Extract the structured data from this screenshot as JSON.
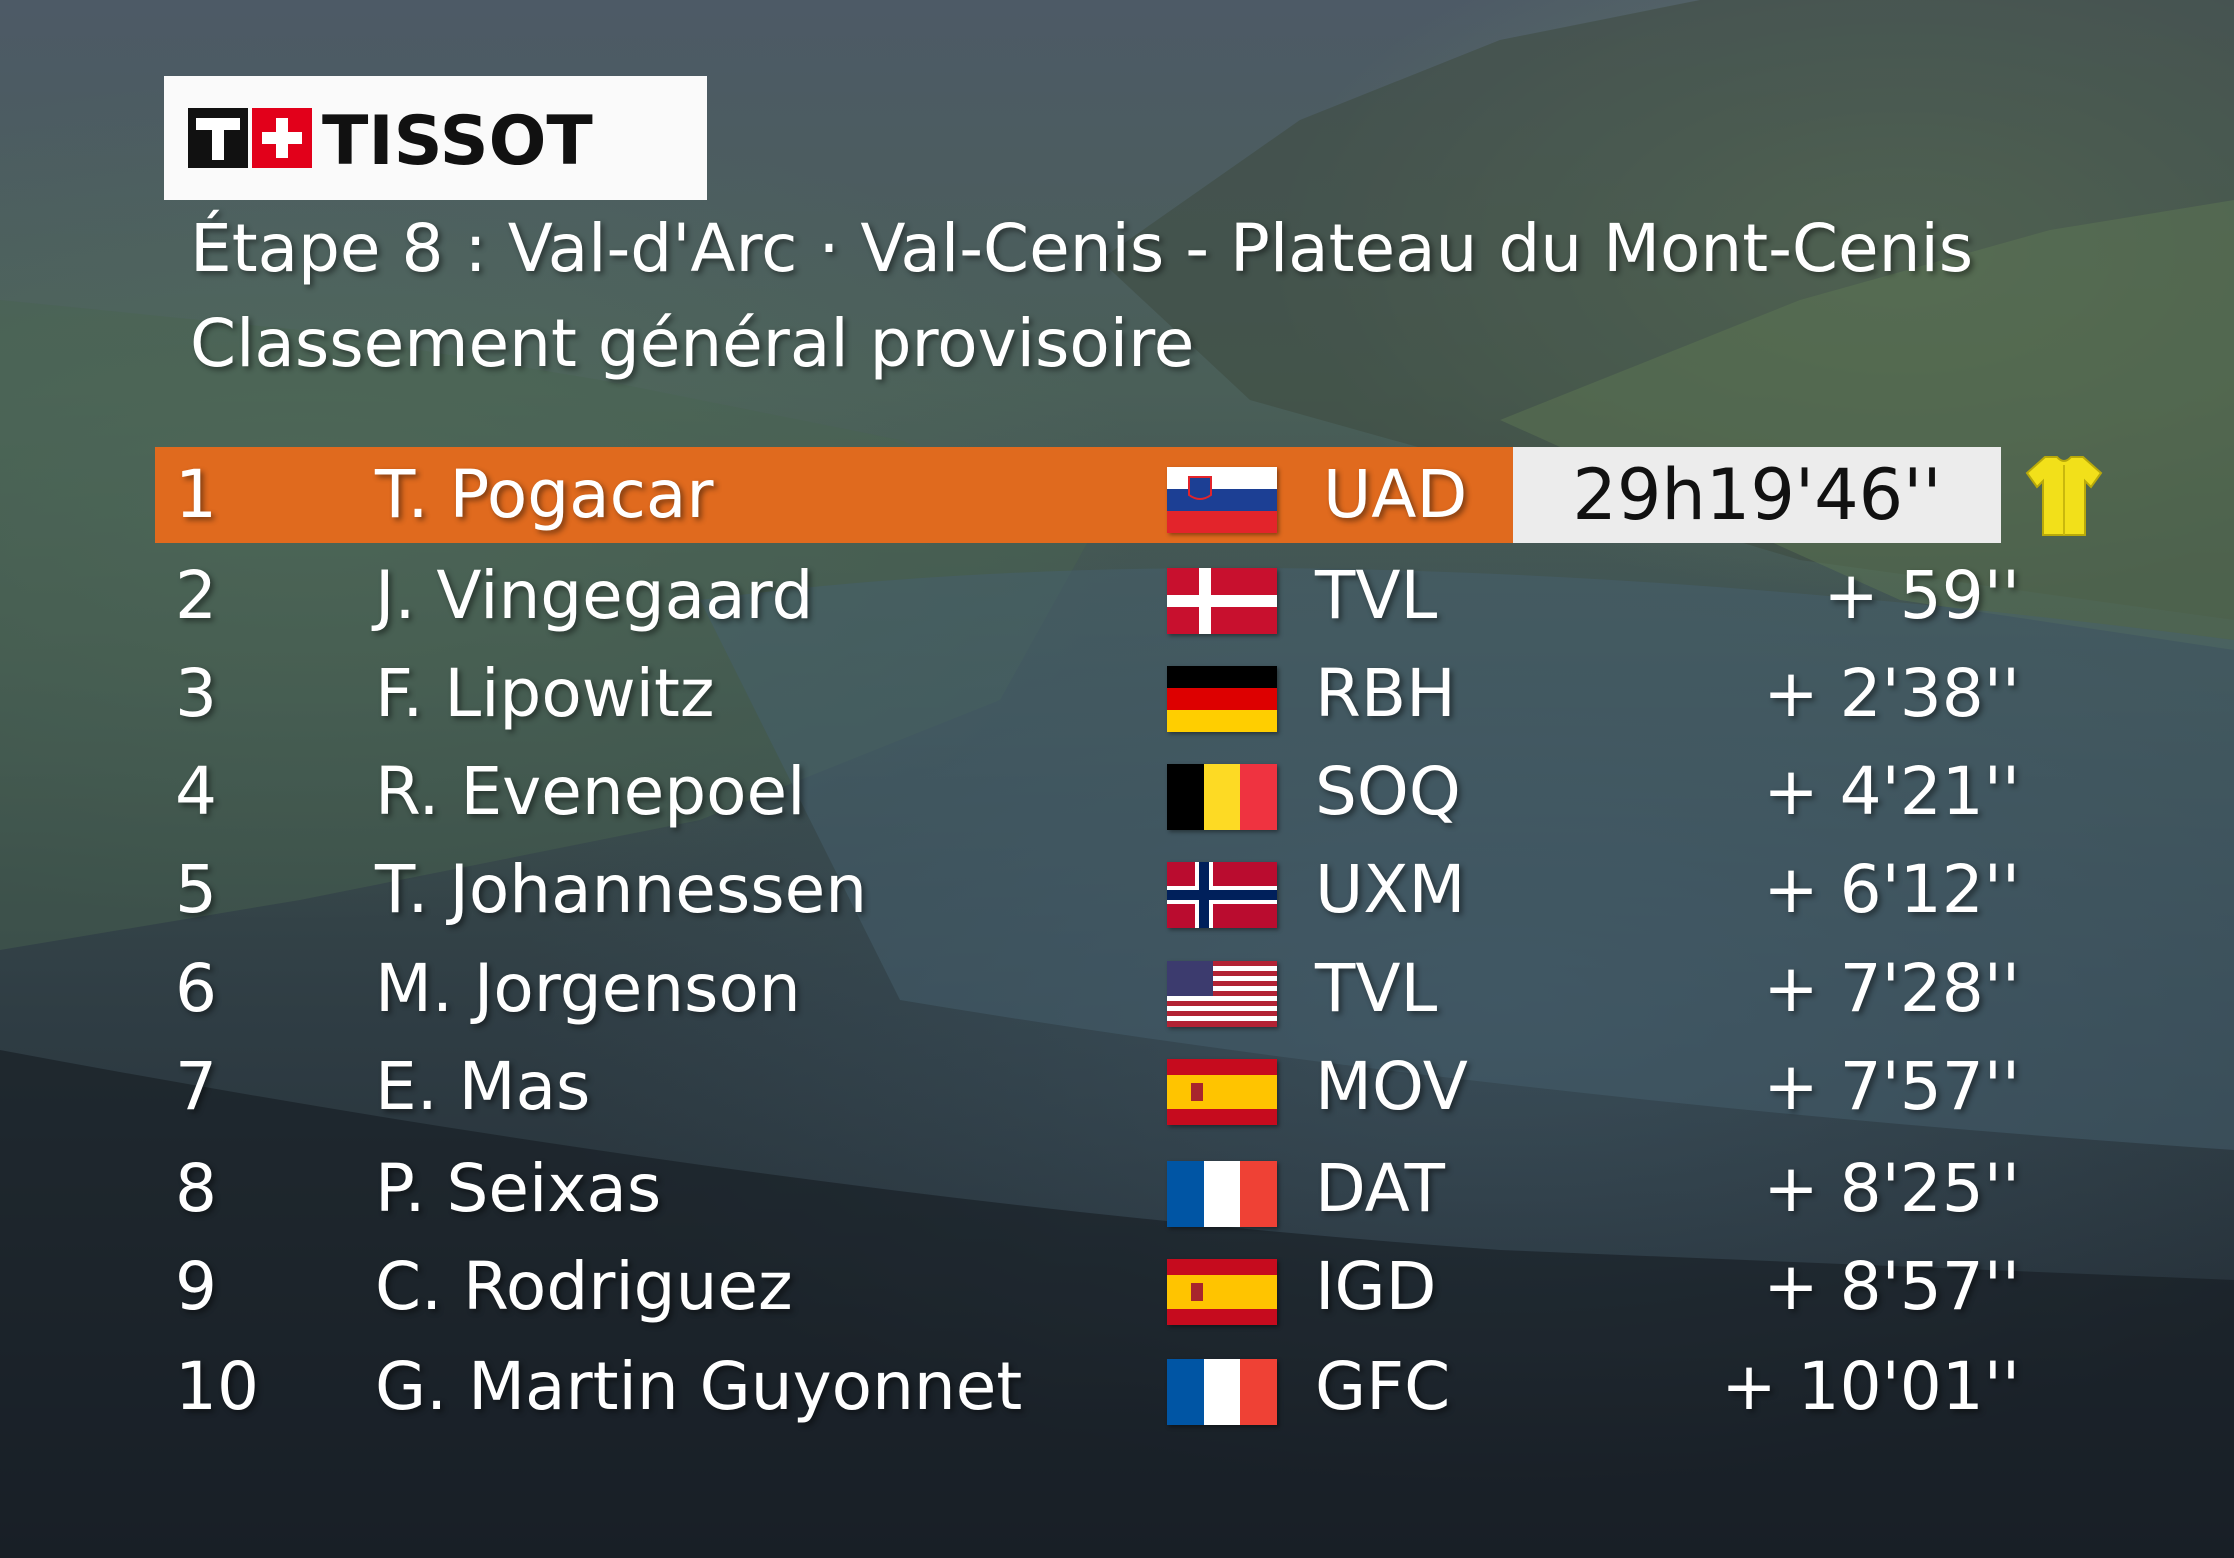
{
  "brand": {
    "logo_text": "TISSOT",
    "accent": "#e2001a"
  },
  "header": {
    "title": "Étape 8 : Val-d'Arc · Val-Cenis - Plateau du Mont-Cenis",
    "subtitle": "Classement général provisoire"
  },
  "colors": {
    "leader_row": "#e06a1e",
    "time_box": "#ececec",
    "yellow_jersey": "#f2e01a"
  },
  "standings": [
    {
      "rank": "1",
      "rider": "T. Pogacar",
      "team": "UAD",
      "time": "29h19'46''",
      "flag": "slovenia-flag-icon",
      "jersey": "yellow-jersey-icon"
    },
    {
      "rank": "2",
      "rider": "J. Vingegaard",
      "team": "TVL",
      "time": "+  59''",
      "flag": "denmark-flag-icon"
    },
    {
      "rank": "3",
      "rider": "F. Lipowitz",
      "team": "RBH",
      "time": "+  2'38''",
      "flag": "germany-flag-icon"
    },
    {
      "rank": "4",
      "rider": "R. Evenepoel",
      "team": "SOQ",
      "time": "+  4'21''",
      "flag": "belgium-flag-icon"
    },
    {
      "rank": "5",
      "rider": "T. Johannessen",
      "team": "UXM",
      "time": "+  6'12''",
      "flag": "norway-flag-icon"
    },
    {
      "rank": "6",
      "rider": "M. Jorgenson",
      "team": "TVL",
      "time": "+  7'28''",
      "flag": "usa-flag-icon"
    },
    {
      "rank": "7",
      "rider": "E. Mas",
      "team": "MOV",
      "time": "+  7'57''",
      "flag": "spain-flag-icon"
    },
    {
      "rank": "8",
      "rider": "P. Seixas",
      "team": "DAT",
      "time": "+  8'25''",
      "flag": "france-flag-icon"
    },
    {
      "rank": "9",
      "rider": "C. Rodriguez",
      "team": "IGD",
      "time": "+  8'57''",
      "flag": "spain-flag-icon"
    },
    {
      "rank": "10",
      "rider": "G. Martin Guyonnet",
      "team": "GFC",
      "time": "+  10'01''",
      "flag": "france-flag-icon"
    }
  ]
}
